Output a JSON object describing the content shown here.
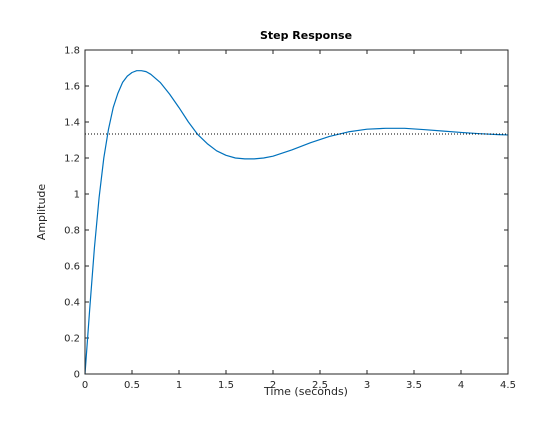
{
  "chart_data": {
    "type": "line",
    "title": "Step Response",
    "xlabel": "Time (seconds)",
    "ylabel": "Amplitude",
    "xlim": [
      0,
      4.5
    ],
    "ylim": [
      0,
      1.8
    ],
    "xticks": [
      0,
      0.5,
      1,
      1.5,
      2,
      2.5,
      3,
      3.5,
      4,
      4.5
    ],
    "xtick_labels": [
      "0",
      "0.5",
      "1",
      "1.5",
      "2",
      "2.5",
      "3",
      "3.5",
      "4",
      "4.5"
    ],
    "yticks": [
      0,
      0.2,
      0.4,
      0.6,
      0.8,
      1,
      1.2,
      1.4,
      1.6,
      1.8
    ],
    "ytick_labels": [
      "0",
      "0.2",
      "0.4",
      "0.6",
      "0.8",
      "1",
      "1.2",
      "1.4",
      "1.6",
      "1.8"
    ],
    "grid": false,
    "series": [
      {
        "color": "#0072BD",
        "style": "solid",
        "x": [
          0,
          0.05,
          0.1,
          0.15,
          0.2,
          0.25,
          0.3,
          0.35,
          0.4,
          0.45,
          0.5,
          0.55,
          0.6,
          0.65,
          0.7,
          0.8,
          0.9,
          1.0,
          1.1,
          1.2,
          1.3,
          1.4,
          1.5,
          1.6,
          1.7,
          1.8,
          1.9,
          2.0,
          2.2,
          2.4,
          2.6,
          2.8,
          3.0,
          3.2,
          3.4,
          3.6,
          3.8,
          4.0,
          4.2,
          4.4,
          4.5
        ],
        "y": [
          0,
          0.36,
          0.7,
          0.98,
          1.2,
          1.36,
          1.48,
          1.56,
          1.62,
          1.655,
          1.675,
          1.685,
          1.685,
          1.68,
          1.665,
          1.62,
          1.555,
          1.48,
          1.4,
          1.33,
          1.28,
          1.24,
          1.215,
          1.2,
          1.195,
          1.195,
          1.2,
          1.21,
          1.245,
          1.285,
          1.32,
          1.345,
          1.36,
          1.365,
          1.365,
          1.358,
          1.35,
          1.342,
          1.335,
          1.33,
          1.328
        ]
      },
      {
        "color": "#000000",
        "style": "dotted",
        "x": [
          0,
          4.5
        ],
        "y": [
          1.333,
          1.333
        ]
      }
    ]
  }
}
